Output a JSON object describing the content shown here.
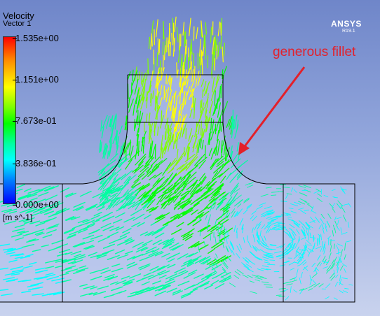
{
  "legend": {
    "title": "Velocity",
    "subtitle": "Vector 1",
    "units": "[m s^-1]",
    "ticks": [
      "1.535e+00",
      "1.151e+00",
      "7.673e-01",
      "3.836e-01",
      "0.000e+00"
    ]
  },
  "branding": {
    "name": "ANSYS",
    "version": "R19.1"
  },
  "annotation": {
    "label": "generous fillet",
    "color": "#e3202a"
  },
  "scene": {
    "background_top": "#6f86c9",
    "background_bottom": "#c9d3ee",
    "geometry_color": "#000000",
    "vector_colors": [
      "#00ffff",
      "#00ffa0",
      "#00ff00",
      "#7fff00",
      "#ffff00"
    ]
  }
}
